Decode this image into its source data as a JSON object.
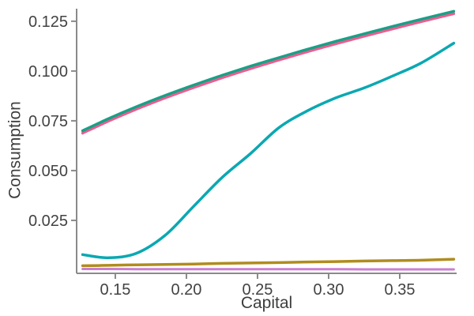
{
  "chart_data": {
    "type": "line",
    "title": "",
    "xlabel": "Capital",
    "ylabel": "Consumption",
    "legend": "none",
    "grid": false,
    "frame": "left-bottom-spines-only",
    "axis_color": "#8a8a8a",
    "tick_label_color": "#424242",
    "xlim": [
      0.1228,
      0.39
    ],
    "ylim": [
      -0.0016,
      0.1313
    ],
    "x_ticks": [
      {
        "v": 0.15,
        "label": "0.15"
      },
      {
        "v": 0.2,
        "label": "0.20"
      },
      {
        "v": 0.25,
        "label": "0.25"
      },
      {
        "v": 0.3,
        "label": "0.30"
      },
      {
        "v": 0.35,
        "label": "0.35"
      }
    ],
    "y_ticks": [
      {
        "v": 0.025,
        "label": "0.025"
      },
      {
        "v": 0.05,
        "label": "0.050"
      },
      {
        "v": 0.075,
        "label": "0.075"
      },
      {
        "v": 0.1,
        "label": "0.100"
      },
      {
        "v": 0.125,
        "label": "0.125"
      }
    ],
    "x": [
      0.127,
      0.145,
      0.165,
      0.185,
      0.205,
      0.225,
      0.245,
      0.265,
      0.285,
      0.305,
      0.325,
      0.345,
      0.365,
      0.388
    ],
    "series": [
      {
        "name": "pink-line",
        "color": "#EE5C90",
        "width": 3.5,
        "values": [
          0.0688,
          0.0748,
          0.0809,
          0.0865,
          0.0917,
          0.0966,
          0.1012,
          0.1055,
          0.1097,
          0.1137,
          0.1175,
          0.1212,
          0.1248,
          0.1288
        ]
      },
      {
        "name": "green-line",
        "color": "#1AA087",
        "width": 3.5,
        "values": [
          0.07,
          0.076,
          0.0821,
          0.0877,
          0.0929,
          0.0978,
          0.1024,
          0.1067,
          0.1109,
          0.1149,
          0.1187,
          0.1224,
          0.126,
          0.13
        ]
      },
      {
        "name": "cyan-line",
        "color": "#0AA8B2",
        "width": 3.5,
        "values": [
          0.0078,
          0.0062,
          0.0085,
          0.0175,
          0.032,
          0.0465,
          0.0585,
          0.0715,
          0.08,
          0.0865,
          0.0915,
          0.0975,
          0.104,
          0.114
        ]
      },
      {
        "name": "gold-line",
        "color": "#B08C1E",
        "width": 3.5,
        "values": [
          0.0022,
          0.0024,
          0.0027,
          0.0029,
          0.0031,
          0.0034,
          0.0036,
          0.0038,
          0.0041,
          0.0043,
          0.0046,
          0.0048,
          0.005,
          0.0055
        ]
      },
      {
        "name": "orchid-line",
        "color": "#CA7ED0",
        "width": 3.0,
        "values": [
          0.0006,
          0.0006,
          0.0005,
          0.0005,
          0.0005,
          0.0005,
          0.0005,
          0.0005,
          0.0005,
          0.0005,
          0.0004,
          0.0004,
          0.0004,
          0.0004
        ]
      }
    ]
  }
}
